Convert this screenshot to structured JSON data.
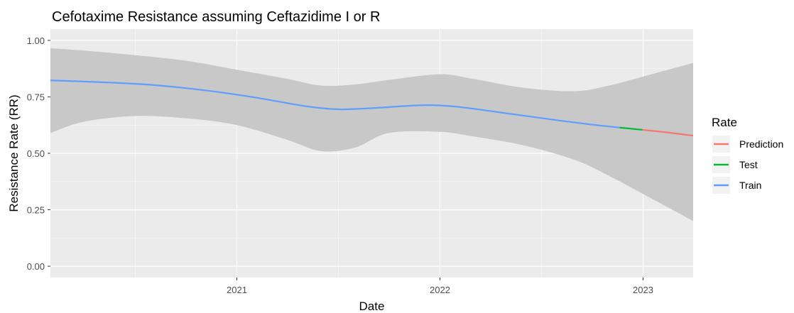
{
  "chart_data": {
    "type": "line",
    "title": "Cefotaxime  Resistance assuming  Ceftazidime I or R",
    "xlabel": "Date",
    "ylabel": "Resistance Rate (RR)",
    "xlim": [
      "2020-02-01",
      "2023-04-01"
    ],
    "ylim": [
      0,
      1
    ],
    "x_ticks": [
      {
        "date": "2021-01-01",
        "label": "2021"
      },
      {
        "date": "2022-01-01",
        "label": "2022"
      },
      {
        "date": "2023-01-01",
        "label": "2023"
      }
    ],
    "y_ticks": [
      {
        "value": 0,
        "label": "0.00"
      },
      {
        "value": 0.25,
        "label": "0.25"
      },
      {
        "value": 0.5,
        "label": "0.50"
      },
      {
        "value": 0.75,
        "label": "0.75"
      },
      {
        "value": 1,
        "label": "1.00"
      }
    ],
    "grid": true,
    "legend": {
      "title": "Rate",
      "position": "right"
    },
    "confidence_band": [
      {
        "x": "2020-02-01",
        "lower": 0.59,
        "upper": 0.965
      },
      {
        "x": "2020-04-01",
        "lower": 0.64,
        "upper": 0.955
      },
      {
        "x": "2020-07-01",
        "lower": 0.665,
        "upper": 0.935
      },
      {
        "x": "2020-10-01",
        "lower": 0.655,
        "upper": 0.91
      },
      {
        "x": "2021-01-01",
        "lower": 0.625,
        "upper": 0.87
      },
      {
        "x": "2021-04-01",
        "lower": 0.56,
        "upper": 0.83
      },
      {
        "x": "2021-06-01",
        "lower": 0.51,
        "upper": 0.8
      },
      {
        "x": "2021-08-01",
        "lower": 0.525,
        "upper": 0.805
      },
      {
        "x": "2021-10-01",
        "lower": 0.59,
        "upper": 0.825
      },
      {
        "x": "2022-01-01",
        "lower": 0.595,
        "upper": 0.85
      },
      {
        "x": "2022-03-01",
        "lower": 0.575,
        "upper": 0.83
      },
      {
        "x": "2022-06-01",
        "lower": 0.535,
        "upper": 0.79
      },
      {
        "x": "2022-09-01",
        "lower": 0.47,
        "upper": 0.775
      },
      {
        "x": "2022-11-01",
        "lower": 0.4,
        "upper": 0.8
      },
      {
        "x": "2023-01-01",
        "lower": 0.32,
        "upper": 0.84
      },
      {
        "x": "2023-04-01",
        "lower": 0.2,
        "upper": 0.9
      }
    ],
    "series": [
      {
        "name": "Prediction",
        "color": "#F8766D",
        "points": [
          {
            "x": "2022-12-31",
            "y": 0.604
          },
          {
            "x": "2023-02-15",
            "y": 0.592
          },
          {
            "x": "2023-04-01",
            "y": 0.578
          }
        ]
      },
      {
        "name": "Test",
        "color": "#00BA38",
        "points": [
          {
            "x": "2022-11-20",
            "y": 0.614
          },
          {
            "x": "2022-12-31",
            "y": 0.604
          }
        ]
      },
      {
        "name": "Train",
        "color": "#619CFF",
        "points": [
          {
            "x": "2020-02-01",
            "y": 0.823
          },
          {
            "x": "2020-05-01",
            "y": 0.815
          },
          {
            "x": "2020-08-01",
            "y": 0.803
          },
          {
            "x": "2020-11-01",
            "y": 0.78
          },
          {
            "x": "2021-02-01",
            "y": 0.748
          },
          {
            "x": "2021-05-01",
            "y": 0.71
          },
          {
            "x": "2021-07-01",
            "y": 0.695
          },
          {
            "x": "2021-09-01",
            "y": 0.7
          },
          {
            "x": "2021-12-01",
            "y": 0.713
          },
          {
            "x": "2022-02-01",
            "y": 0.706
          },
          {
            "x": "2022-05-01",
            "y": 0.677
          },
          {
            "x": "2022-08-01",
            "y": 0.646
          },
          {
            "x": "2022-10-01",
            "y": 0.627
          },
          {
            "x": "2022-11-20",
            "y": 0.614
          }
        ]
      }
    ]
  }
}
